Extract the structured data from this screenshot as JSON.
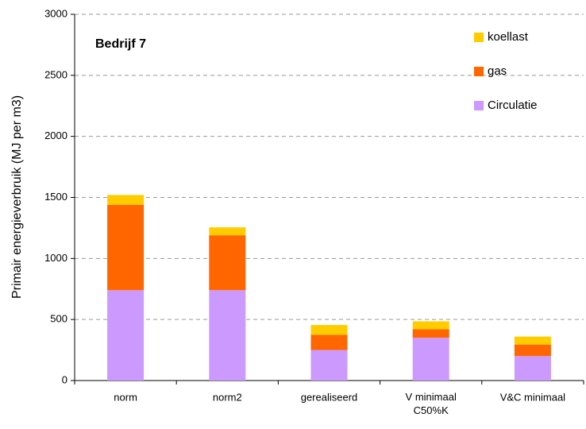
{
  "chart_data": {
    "type": "stacked_bar",
    "title": "Bedrijf 7",
    "y_label": "Primair energieverbruik (MJ per m3)",
    "categories": [
      "norm",
      "norm2",
      "gerealiseerd",
      "V minimaal C50%K",
      "V&C minimaal"
    ],
    "series": [
      {
        "name": "Circulatie",
        "color": "#cc99ff",
        "values": [
          740,
          740,
          250,
          350,
          200
        ]
      },
      {
        "name": "gas",
        "color": "#ff6600",
        "values": [
          700,
          450,
          125,
          70,
          95
        ]
      },
      {
        "name": "koellast",
        "color": "#ffcc00",
        "values": [
          80,
          65,
          80,
          65,
          65
        ]
      }
    ],
    "ylim": [
      0,
      3000
    ],
    "yticks": [
      0,
      500,
      1000,
      1500,
      2000,
      2500,
      3000
    ],
    "grid": true,
    "legend": "upper right"
  }
}
